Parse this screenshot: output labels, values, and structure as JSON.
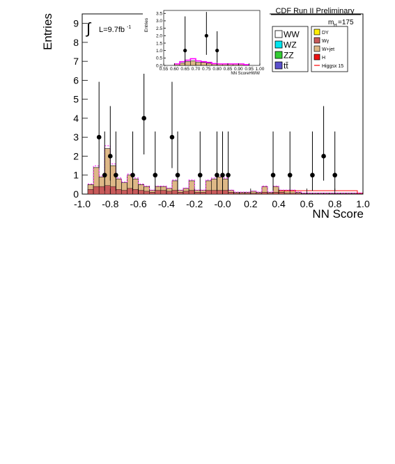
{
  "header": {
    "title": "CDF Run II Preliminary",
    "mass_label": "m",
    "mass_sub": "H",
    "mass_value": "=175"
  },
  "lumi": {
    "integral": "∫",
    "text": "L=9.7fb",
    "sup": "-1"
  },
  "legend": {
    "items": [
      {
        "label": "WW",
        "color": "#ffffff",
        "size": "big"
      },
      {
        "label": "WZ",
        "color": "#00e5ee",
        "size": "big"
      },
      {
        "label": "ZZ",
        "color": "#33cc33",
        "size": "big"
      },
      {
        "label": "tt̄",
        "color": "#5a50cc",
        "size": "big"
      },
      {
        "label": "DY",
        "color": "#ffee00",
        "size": "small"
      },
      {
        "label": "Wγ",
        "color": "#c85a5a",
        "size": "small"
      },
      {
        "label": "W+jet",
        "color": "#deb887",
        "size": "small"
      },
      {
        "label": "H",
        "color": "#ee1111",
        "size": "small"
      },
      {
        "label": "Higgsx 15",
        "color": "#ff0000",
        "size": "small",
        "line": true
      }
    ]
  },
  "chart_data": [
    {
      "type": "bar",
      "xlabel": "NN Score",
      "ylabel": "Entries",
      "xlim": [
        -1.0,
        1.0
      ],
      "ylim": [
        0,
        9.5
      ],
      "x_ticks": [
        "-1.0",
        "-0.8",
        "-0.6",
        "-0.4",
        "-0.2",
        "-0.0",
        "0.2",
        "0.4",
        "0.6",
        "0.8",
        "1.0"
      ],
      "y_ticks": [
        "0",
        "1",
        "2",
        "3",
        "4",
        "5",
        "6",
        "7",
        "8",
        "9"
      ],
      "bin_width": 0.04,
      "bin_edges_start": -0.96,
      "stack_total": [
        0.5,
        1.4,
        0.9,
        2.4,
        1.5,
        0.8,
        0.6,
        1.0,
        0.8,
        0.5,
        0.4,
        0.2,
        0.4,
        0.4,
        0.3,
        0.7,
        0.2,
        0.3,
        0.7,
        0.2,
        0.2,
        0.7,
        0.8,
        0.9,
        0.8,
        0.2,
        0.1,
        0.1,
        0.1,
        0.15,
        0.1,
        0.4,
        0.1,
        0.4,
        0.2,
        0.2,
        0.2,
        0.1,
        0.05,
        0.05,
        0.05,
        0.05,
        0.05,
        0.05,
        0.05,
        0.05,
        0.05,
        0.05,
        0.05,
        0.05
      ],
      "stack_lower": [
        0.25,
        0.4,
        0.4,
        0.45,
        0.4,
        0.25,
        0.2,
        0.3,
        0.25,
        0.2,
        0.15,
        0.1,
        0.2,
        0.2,
        0.15,
        0.2,
        0.1,
        0.15,
        0.2,
        0.1,
        0.1,
        0.2,
        0.2,
        0.2,
        0.2,
        0.1,
        0.05,
        0.05,
        0.05,
        0.05,
        0.05,
        0.1,
        0.05,
        0.1,
        0.1,
        0.05,
        0.05,
        0.05,
        0.02,
        0.02,
        0.02,
        0.02,
        0.02,
        0.02,
        0.02,
        0.02,
        0.02,
        0.02,
        0.02,
        0.02
      ],
      "data_points": [
        {
          "x": -0.88,
          "y": 3,
          "err_lo": 1.63,
          "err_hi": 2.92
        },
        {
          "x": -0.84,
          "y": 1,
          "err_lo": 0.83,
          "err_hi": 2.3
        },
        {
          "x": -0.8,
          "y": 2,
          "err_lo": 1.29,
          "err_hi": 2.64
        },
        {
          "x": -0.76,
          "y": 1,
          "err_lo": 0.83,
          "err_hi": 2.3
        },
        {
          "x": -0.64,
          "y": 1,
          "err_lo": 0.83,
          "err_hi": 2.3
        },
        {
          "x": -0.56,
          "y": 4,
          "err_lo": 1.91,
          "err_hi": 3.16
        },
        {
          "x": -0.48,
          "y": 1,
          "err_lo": 0.83,
          "err_hi": 2.3
        },
        {
          "x": -0.36,
          "y": 3,
          "err_lo": 1.63,
          "err_hi": 2.92
        },
        {
          "x": -0.32,
          "y": 1,
          "err_lo": 0.83,
          "err_hi": 2.3
        },
        {
          "x": -0.16,
          "y": 1,
          "err_lo": 0.83,
          "err_hi": 2.3
        },
        {
          "x": -0.04,
          "y": 1,
          "err_lo": 0.83,
          "err_hi": 2.3
        },
        {
          "x": 0.0,
          "y": 1,
          "err_lo": 0.83,
          "err_hi": 2.3
        },
        {
          "x": 0.04,
          "y": 1,
          "err_lo": 0.83,
          "err_hi": 2.3
        },
        {
          "x": 0.36,
          "y": 1,
          "err_lo": 0.83,
          "err_hi": 2.3
        },
        {
          "x": 0.48,
          "y": 1,
          "err_lo": 0.83,
          "err_hi": 2.3
        },
        {
          "x": 0.64,
          "y": 1,
          "err_lo": 0.83,
          "err_hi": 2.3
        },
        {
          "x": 0.72,
          "y": 2,
          "err_lo": 1.29,
          "err_hi": 2.64
        },
        {
          "x": 0.8,
          "y": 1,
          "err_lo": 0.83,
          "err_hi": 2.3
        }
      ]
    },
    {
      "type": "bar",
      "xlabel": "NN ScoreHWW",
      "ylabel": "Entries",
      "xlim": [
        0.55,
        1.0
      ],
      "ylim": [
        0,
        3.7
      ],
      "x_ticks": [
        "0.55",
        "0.60",
        "0.65",
        "0.70",
        "0.75",
        "0.80",
        "0.85",
        "0.90",
        "0.95",
        "1.00"
      ],
      "y_ticks": [
        "0.0",
        "0.5",
        "1.0",
        "1.5",
        "2.0",
        "2.5",
        "3.0",
        "3.5"
      ],
      "bin_width": 0.025,
      "bin_edges_start": 0.6,
      "stack_total": [
        0.1,
        0.15,
        0.25,
        0.3,
        0.2,
        0.2,
        0.15,
        0.1,
        0.1,
        0.1,
        0.1,
        0.1,
        0.1,
        0.05
      ],
      "higgs_line": [
        0.1,
        0.25,
        0.35,
        0.45,
        0.3,
        0.25,
        0.2,
        0.12,
        0.1,
        0.1,
        0.1,
        0.1,
        0.1,
        0.05
      ],
      "data_points": [
        {
          "x": 0.65,
          "y": 1,
          "err_lo": 0.83,
          "err_hi": 2.3
        },
        {
          "x": 0.75,
          "y": 2,
          "err_lo": 1.29,
          "err_hi": 1.6
        },
        {
          "x": 0.8,
          "y": 1,
          "err_lo": 0.83,
          "err_hi": 1.3
        }
      ]
    }
  ]
}
